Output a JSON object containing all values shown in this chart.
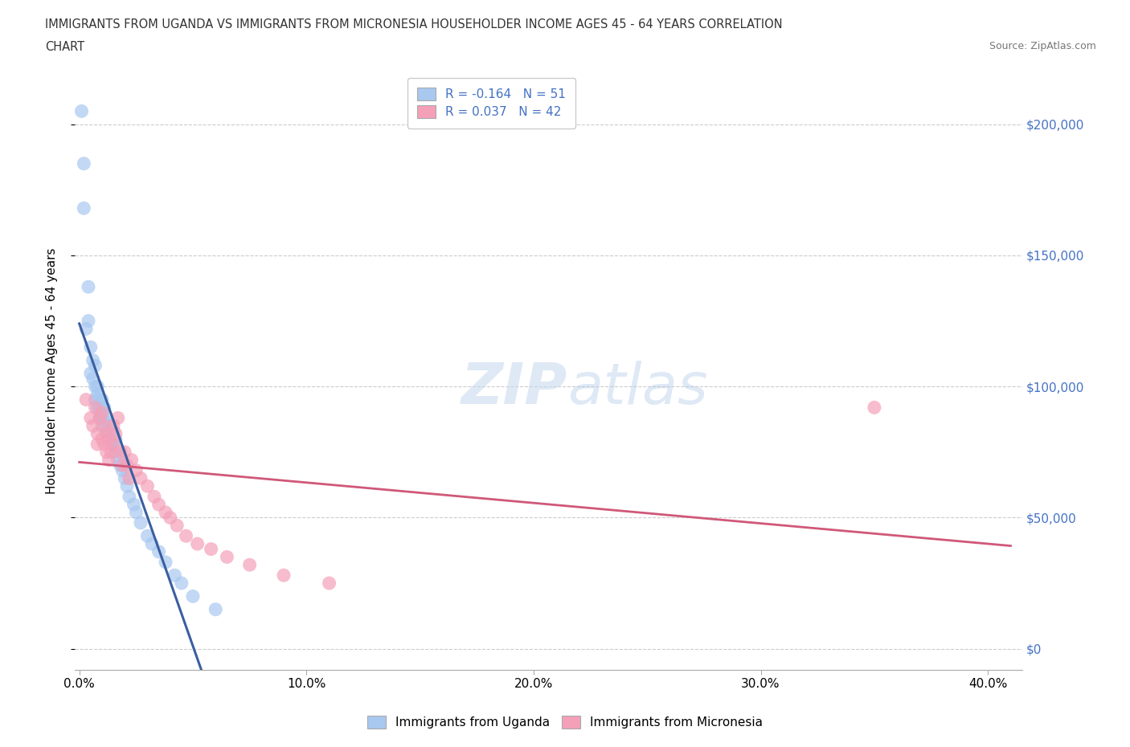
{
  "title_line1": "IMMIGRANTS FROM UGANDA VS IMMIGRANTS FROM MICRONESIA HOUSEHOLDER INCOME AGES 45 - 64 YEARS CORRELATION",
  "title_line2": "CHART",
  "source": "Source: ZipAtlas.com",
  "ylabel": "Householder Income Ages 45 - 64 years",
  "legend_uganda": "Immigrants from Uganda",
  "legend_micronesia": "Immigrants from Micronesia",
  "R_uganda": -0.164,
  "N_uganda": 51,
  "R_micronesia": 0.037,
  "N_micronesia": 42,
  "uganda_color": "#a8c8f0",
  "uganda_line_color": "#3a5fa0",
  "uganda_dash_color": "#7aaad8",
  "micronesia_color": "#f4a0b8",
  "micronesia_line_color": "#d05878",
  "background_color": "#ffffff",
  "xlim": [
    -0.002,
    0.415
  ],
  "ylim": [
    -8000,
    220000
  ],
  "ytick_values": [
    0,
    50000,
    100000,
    150000,
    200000
  ],
  "ytick_labels": [
    "$0",
    "$50,000",
    "$100,000",
    "$150,000",
    "$200,000"
  ],
  "xtick_values": [
    0.0,
    0.1,
    0.2,
    0.3,
    0.4
  ],
  "xtick_labels": [
    "0.0%",
    "10.0%",
    "20.0%",
    "30.0%",
    "40.0%"
  ],
  "uganda_x": [
    0.001,
    0.002,
    0.003,
    0.004,
    0.004,
    0.005,
    0.005,
    0.006,
    0.006,
    0.007,
    0.007,
    0.007,
    0.008,
    0.008,
    0.008,
    0.009,
    0.009,
    0.009,
    0.01,
    0.01,
    0.01,
    0.01,
    0.011,
    0.011,
    0.012,
    0.012,
    0.013,
    0.013,
    0.014,
    0.015,
    0.015,
    0.016,
    0.016,
    0.017,
    0.018,
    0.019,
    0.02,
    0.021,
    0.022,
    0.024,
    0.025,
    0.027,
    0.03,
    0.032,
    0.035,
    0.038,
    0.042,
    0.045,
    0.05,
    0.06,
    0.002
  ],
  "uganda_y": [
    205000,
    168000,
    122000,
    138000,
    125000,
    115000,
    105000,
    110000,
    103000,
    108000,
    100000,
    95000,
    100000,
    97000,
    92000,
    95000,
    92000,
    88000,
    95000,
    90000,
    88000,
    85000,
    92000,
    87000,
    88000,
    82000,
    85000,
    80000,
    78000,
    83000,
    78000,
    80000,
    75000,
    72000,
    70000,
    68000,
    65000,
    62000,
    58000,
    55000,
    52000,
    48000,
    43000,
    40000,
    37000,
    33000,
    28000,
    25000,
    20000,
    15000,
    185000
  ],
  "micronesia_x": [
    0.003,
    0.005,
    0.006,
    0.007,
    0.008,
    0.008,
    0.009,
    0.01,
    0.01,
    0.011,
    0.011,
    0.012,
    0.012,
    0.013,
    0.013,
    0.014,
    0.015,
    0.016,
    0.017,
    0.018,
    0.019,
    0.02,
    0.021,
    0.022,
    0.023,
    0.025,
    0.027,
    0.03,
    0.033,
    0.035,
    0.038,
    0.04,
    0.043,
    0.047,
    0.052,
    0.058,
    0.065,
    0.075,
    0.09,
    0.11,
    0.35,
    0.015
  ],
  "micronesia_y": [
    95000,
    88000,
    85000,
    92000,
    82000,
    78000,
    88000,
    90000,
    80000,
    85000,
    78000,
    82000,
    75000,
    80000,
    72000,
    75000,
    78000,
    82000,
    88000,
    75000,
    70000,
    75000,
    70000,
    65000,
    72000,
    68000,
    65000,
    62000,
    58000,
    55000,
    52000,
    50000,
    47000,
    43000,
    40000,
    38000,
    35000,
    32000,
    28000,
    25000,
    92000,
    85000
  ]
}
